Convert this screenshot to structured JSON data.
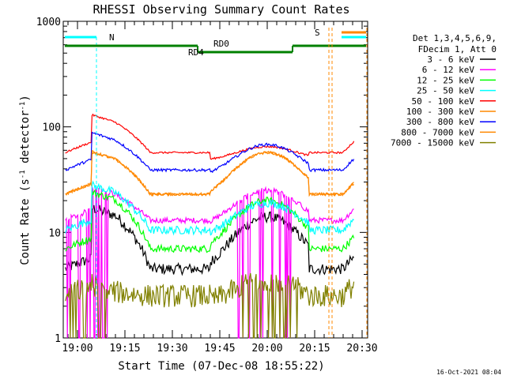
{
  "chart_data": {
    "type": "line",
    "title": "RHESSI Observing Summary Count Rates",
    "xlabel": "Start Time (07-Dec-08 18:55:22)",
    "ylabel_main": "Count Rate (s",
    "ylabel_sup1": "-1",
    "ylabel_mid": " detector",
    "ylabel_sup2": "-1",
    "ylabel_end": ")",
    "footer": "16-Oct-2021 08:04",
    "y_scale": "log",
    "ylim": [
      1,
      1000
    ],
    "xlim_minutes": [
      -4.5,
      36
    ],
    "x_ticks": [
      {
        "m": 0,
        "label": "19:00"
      },
      {
        "m": 15,
        "label": "19:15"
      },
      {
        "m": 30,
        "label": "19:30"
      },
      {
        "m": 45,
        "label": "19:45"
      },
      {
        "m": 60,
        "label": "20:00"
      },
      {
        "m": 75,
        "label": "20:15"
      },
      {
        "m": 90,
        "label": "20:30"
      }
    ],
    "y_ticks": [
      {
        "v": 1,
        "label": "1"
      },
      {
        "v": 10,
        "label": "10"
      },
      {
        "v": 100,
        "label": "100"
      },
      {
        "v": 1000,
        "label": "1000"
      }
    ],
    "legend": {
      "header_lines": [
        "Det 1,3,4,5,6,9,",
        "FDecim 1, Att 0"
      ],
      "placement": "right"
    },
    "series": [
      {
        "name": "3 - 6 keV",
        "color": "#000000",
        "base": 4.5,
        "peak": 17,
        "bump": 14,
        "noise": 0.12,
        "step": 0,
        "floor": 0
      },
      {
        "name": "6 - 12 keV",
        "color": "#ff00ff",
        "base": 13,
        "peak": 27,
        "bump": 25,
        "noise": 0.06,
        "step": 0,
        "floor": 1
      },
      {
        "name": "12 - 25 keV",
        "color": "#00ff00",
        "base": 7,
        "peak": 24,
        "bump": 20,
        "noise": 0.08,
        "step": 0,
        "floor": 0
      },
      {
        "name": "25 - 50 keV",
        "color": "#00ffff",
        "base": 10.5,
        "peak": 28,
        "bump": 19,
        "noise": 0.09,
        "step": 0,
        "floor": 0
      },
      {
        "name": "50 - 100 keV",
        "color": "#ff0000",
        "base": 57,
        "peak": 130,
        "bump": 65,
        "noise": 0.02,
        "step": 1,
        "floor": 0
      },
      {
        "name": "100 - 300 keV",
        "color": "#ff8800",
        "base": 23,
        "peak": 58,
        "bump": 57,
        "noise": 0.03,
        "step": 1,
        "floor": 0
      },
      {
        "name": "300 - 800 keV",
        "color": "#0000ff",
        "base": 39,
        "peak": 88,
        "bump": 68,
        "noise": 0.03,
        "step": 1,
        "floor": 0
      },
      {
        "name": "800 - 7000 keV",
        "color": "#ff8800",
        "base": 23,
        "peak": 58,
        "bump": 57,
        "noise": 0.03,
        "step": 1,
        "floor": 0
      },
      {
        "name": "7000 - 15000 keV",
        "color": "#808000",
        "base": 2.5,
        "peak": 3.2,
        "bump": 3.6,
        "noise": 0.25,
        "step": 0,
        "floor": 1
      }
    ],
    "annotations": [
      {
        "label": "N",
        "color": "#00ffff"
      },
      {
        "label": "RD0",
        "color": "#008000"
      },
      {
        "label": "RD4",
        "color": "#008000"
      },
      {
        "label": "S",
        "color": "#ff8800"
      }
    ],
    "grid": false
  }
}
